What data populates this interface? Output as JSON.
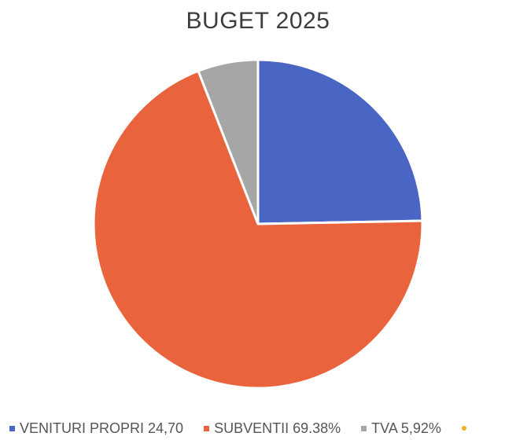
{
  "chart_data": {
    "type": "pie",
    "title": "BUGET 2025",
    "slices": [
      {
        "label": "VENITURI PROPRI 24,70",
        "value": 24.7,
        "color": "#4a66c4"
      },
      {
        "label": "SUBVENTII 69.38%",
        "value": 69.38,
        "color": "#e9633c"
      },
      {
        "label": "TVA 5,92%",
        "value": 5.92,
        "color": "#a6a6a6"
      }
    ],
    "extra_legend_marker_color": "#f2b024",
    "start_angle": "12 o'clock",
    "direction": "clockwise",
    "legend_position": "bottom"
  }
}
